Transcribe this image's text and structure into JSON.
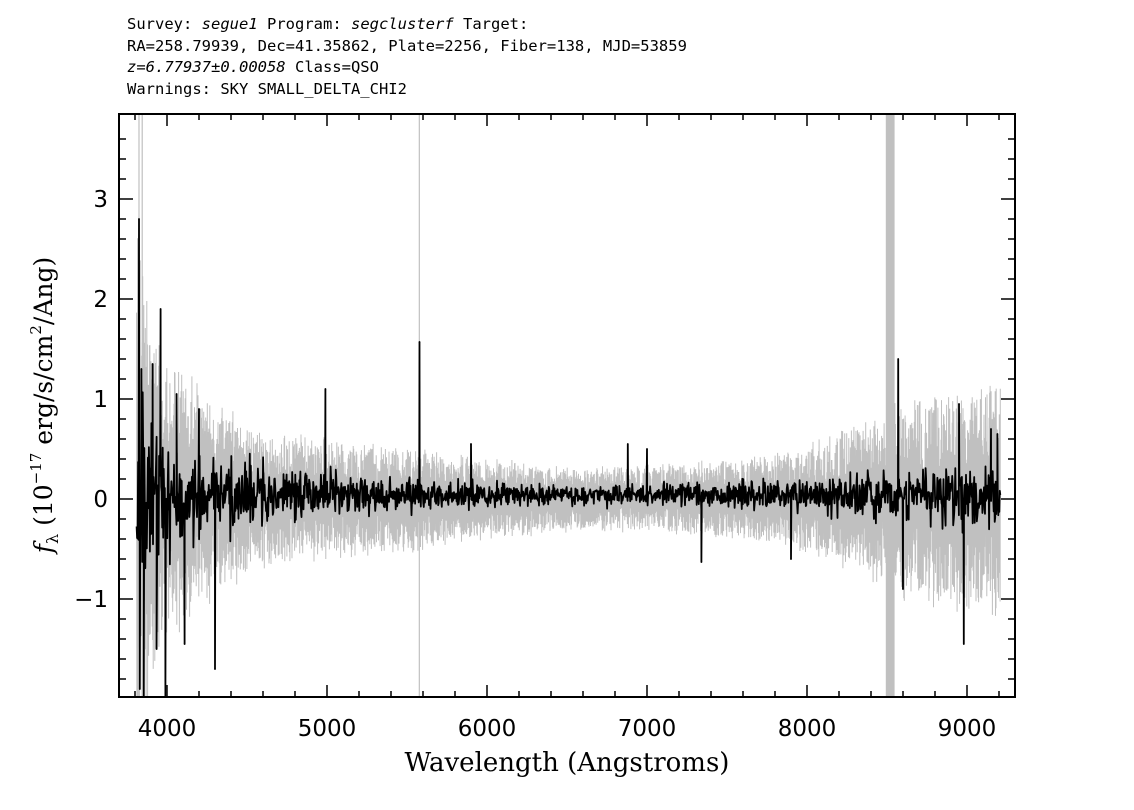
{
  "header": {
    "survey_label": "Survey:",
    "survey_value": "segue1",
    "program_label": "Program:",
    "program_value": "segclusterf",
    "target_label": "Target:",
    "line2": "RA=258.79939, Dec=41.35862, Plate=2256, Fiber=138, MJD=53859",
    "redshift": "z=6.77937±0.00058",
    "class_text": "Class=QSO",
    "warnings": "Warnings: SKY SMALL_DELTA_CHI2"
  },
  "chart_data": {
    "type": "line",
    "title": "",
    "xlabel": "Wavelength (Angstroms)",
    "ylabel_prefix": "f",
    "ylabel_sub": "λ",
    "ylabel_mid": " (10",
    "ylabel_exp": "−17",
    "ylabel_units": " erg/s/cm",
    "ylabel_sq": "2",
    "ylabel_end": "/Ang)",
    "xlim": [
      3700,
      9300
    ],
    "ylim": [
      -1.98,
      3.85
    ],
    "x_ticks": [
      4000,
      5000,
      6000,
      7000,
      8000,
      9000
    ],
    "y_ticks": [
      -1,
      0,
      1,
      2,
      3
    ],
    "y_tick_labels": [
      "−1",
      "0",
      "1",
      "2",
      "3"
    ],
    "grid": false,
    "series": [
      {
        "role": "noise",
        "color": "#c0c0c0",
        "x_range": [
          3810,
          9210
        ],
        "envelope": [
          [
            3810,
            2.2
          ],
          [
            3900,
            1.3
          ],
          [
            4000,
            1.1
          ],
          [
            4200,
            0.85
          ],
          [
            4500,
            0.55
          ],
          [
            5000,
            0.45
          ],
          [
            5500,
            0.4
          ],
          [
            6000,
            0.3
          ],
          [
            6500,
            0.25
          ],
          [
            7000,
            0.25
          ],
          [
            7500,
            0.3
          ],
          [
            8000,
            0.4
          ],
          [
            8300,
            0.55
          ],
          [
            8600,
            0.75
          ],
          [
            9000,
            0.85
          ],
          [
            9210,
            0.9
          ]
        ],
        "spikes": [
          {
            "x": 5577,
            "y": [
              -1.98,
              3.85
            ]
          },
          {
            "x": 8505,
            "y": [
              -1.98,
              3.85
            ]
          },
          {
            "x": 8520,
            "y": [
              -1.98,
              3.85
            ]
          },
          {
            "x": 8535,
            "y": [
              -1.98,
              3.85
            ]
          },
          {
            "x": 3825,
            "y": [
              -1.98,
              3.85
            ]
          },
          {
            "x": 3845,
            "y": [
              -1.98,
              3.85
            ]
          }
        ]
      },
      {
        "role": "flux",
        "color": "#000000",
        "x_range": [
          3810,
          9210
        ],
        "amplitude": [
          [
            3810,
            0.95
          ],
          [
            4000,
            0.55
          ],
          [
            4300,
            0.38
          ],
          [
            4700,
            0.28
          ],
          [
            5200,
            0.2
          ],
          [
            5600,
            0.16
          ],
          [
            6000,
            0.13
          ],
          [
            6500,
            0.11
          ],
          [
            7000,
            0.11
          ],
          [
            7500,
            0.14
          ],
          [
            8000,
            0.18
          ],
          [
            8400,
            0.25
          ],
          [
            8800,
            0.3
          ],
          [
            9210,
            0.35
          ]
        ],
        "features": [
          {
            "x": 3825,
            "y": 2.8
          },
          {
            "x": 3830,
            "y": -1.9
          },
          {
            "x": 3840,
            "y": 1.3
          },
          {
            "x": 3855,
            "y": -1.98
          },
          {
            "x": 3910,
            "y": 1.35
          },
          {
            "x": 3935,
            "y": -1.5
          },
          {
            "x": 3960,
            "y": 1.9
          },
          {
            "x": 3990,
            "y": -1.98
          },
          {
            "x": 4060,
            "y": 1.05
          },
          {
            "x": 4110,
            "y": -1.45
          },
          {
            "x": 4200,
            "y": 0.9
          },
          {
            "x": 4300,
            "y": -1.7
          },
          {
            "x": 4990,
            "y": 1.1
          },
          {
            "x": 5578,
            "y": 1.57
          },
          {
            "x": 5900,
            "y": 0.55
          },
          {
            "x": 6880,
            "y": 0.55
          },
          {
            "x": 7000,
            "y": 0.5
          },
          {
            "x": 7340,
            "y": -0.63
          },
          {
            "x": 7900,
            "y": -0.6
          },
          {
            "x": 8570,
            "y": 1.4
          },
          {
            "x": 8600,
            "y": -0.9
          },
          {
            "x": 8950,
            "y": 0.95
          },
          {
            "x": 8980,
            "y": -1.45
          },
          {
            "x": 9150,
            "y": 0.7
          },
          {
            "x": 9190,
            "y": 0.65
          }
        ]
      }
    ]
  }
}
